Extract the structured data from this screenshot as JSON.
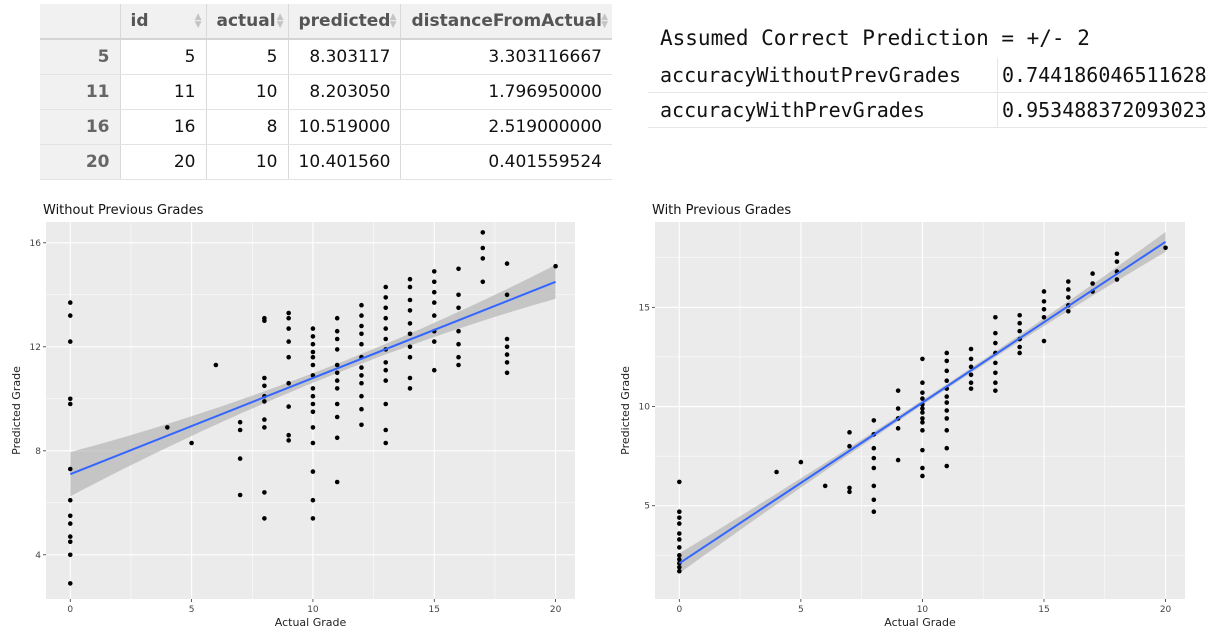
{
  "table": {
    "columns": [
      "id",
      "actual",
      "predicted",
      "distanceFromActual"
    ],
    "rows": [
      {
        "rowname": "5",
        "cells": [
          "5",
          "5",
          "8.303117",
          "3.303116667"
        ]
      },
      {
        "rowname": "11",
        "cells": [
          "11",
          "10",
          "8.203050",
          "1.796950000"
        ]
      },
      {
        "rowname": "16",
        "cells": [
          "16",
          "8",
          "10.519000",
          "2.519000000"
        ]
      },
      {
        "rowname": "20",
        "cells": [
          "20",
          "10",
          "10.401560",
          "0.401559524"
        ]
      }
    ]
  },
  "accuracy": {
    "assumed_label": "Assumed Correct Prediction = +/- 2",
    "rows": [
      {
        "label": "accuracyWithoutPrevGrades",
        "value": "0.744186046511628"
      },
      {
        "label": "accuracyWithPrevGrades",
        "value": "0.953488372093023"
      }
    ]
  },
  "colors": {
    "panel_bg": "#ebebeb",
    "grid": "#ffffff",
    "point": "#000000",
    "fit_line": "#3366ff",
    "ribbon": "#b0b0b0"
  },
  "chart_data": [
    {
      "type": "scatter",
      "title": "Without Previous Grades",
      "xlabel": "Actual Grade",
      "ylabel": "Predicted Grade",
      "xlim": [
        -1,
        20.8
      ],
      "ylim": [
        2.3,
        16.8
      ],
      "xticks": [
        0,
        5,
        10,
        15,
        20
      ],
      "yticks": [
        4,
        8,
        12,
        16
      ],
      "fit": {
        "x0": 0,
        "y0": 7.1,
        "x1": 20,
        "y1": 14.5
      },
      "ribbon": {
        "left_halfwidth": 0.85,
        "center_halfwidth": 0.18,
        "right_halfwidth": 0.65,
        "center_x": 11
      },
      "grid": true,
      "points": [
        [
          0,
          2.9
        ],
        [
          0,
          4.0
        ],
        [
          0,
          4.5
        ],
        [
          0,
          4.7
        ],
        [
          0,
          5.2
        ],
        [
          0,
          5.5
        ],
        [
          0,
          6.1
        ],
        [
          0,
          7.3
        ],
        [
          0,
          9.8
        ],
        [
          0,
          10.0
        ],
        [
          0,
          12.2
        ],
        [
          0,
          13.2
        ],
        [
          0,
          13.7
        ],
        [
          4,
          8.9
        ],
        [
          5,
          8.3
        ],
        [
          6,
          11.3
        ],
        [
          7,
          6.3
        ],
        [
          7,
          7.7
        ],
        [
          7,
          8.8
        ],
        [
          7,
          9.1
        ],
        [
          8,
          5.4
        ],
        [
          8,
          6.4
        ],
        [
          8,
          8.9
        ],
        [
          8,
          9.2
        ],
        [
          8,
          9.9
        ],
        [
          8,
          10.1
        ],
        [
          8,
          10.5
        ],
        [
          8,
          10.8
        ],
        [
          8,
          13.0
        ],
        [
          8,
          13.1
        ],
        [
          9,
          8.4
        ],
        [
          9,
          8.6
        ],
        [
          9,
          9.7
        ],
        [
          9,
          10.6
        ],
        [
          9,
          11.6
        ],
        [
          9,
          12.2
        ],
        [
          9,
          12.7
        ],
        [
          9,
          13.1
        ],
        [
          9,
          13.3
        ],
        [
          10,
          5.4
        ],
        [
          10,
          6.1
        ],
        [
          10,
          7.2
        ],
        [
          10,
          8.3
        ],
        [
          10,
          8.9
        ],
        [
          10,
          9.5
        ],
        [
          10,
          9.8
        ],
        [
          10,
          10.1
        ],
        [
          10,
          10.4
        ],
        [
          10,
          10.9
        ],
        [
          10,
          11.3
        ],
        [
          10,
          11.6
        ],
        [
          10,
          11.8
        ],
        [
          10,
          12.1
        ],
        [
          10,
          12.4
        ],
        [
          10,
          12.7
        ],
        [
          11,
          6.8
        ],
        [
          11,
          8.5
        ],
        [
          11,
          9.3
        ],
        [
          11,
          9.8
        ],
        [
          11,
          10.4
        ],
        [
          11,
          10.7
        ],
        [
          11,
          11.0
        ],
        [
          11,
          11.3
        ],
        [
          11,
          11.9
        ],
        [
          11,
          12.3
        ],
        [
          11,
          12.6
        ],
        [
          11,
          13.1
        ],
        [
          12,
          9.0
        ],
        [
          12,
          9.6
        ],
        [
          12,
          10.1
        ],
        [
          12,
          10.6
        ],
        [
          12,
          10.9
        ],
        [
          12,
          11.2
        ],
        [
          12,
          11.6
        ],
        [
          12,
          12.1
        ],
        [
          12,
          12.5
        ],
        [
          12,
          12.8
        ],
        [
          12,
          13.2
        ],
        [
          12,
          13.6
        ],
        [
          13,
          8.3
        ],
        [
          13,
          8.8
        ],
        [
          13,
          9.8
        ],
        [
          13,
          10.7
        ],
        [
          13,
          11.1
        ],
        [
          13,
          11.4
        ],
        [
          13,
          11.9
        ],
        [
          13,
          12.3
        ],
        [
          13,
          12.7
        ],
        [
          13,
          13.1
        ],
        [
          13,
          13.5
        ],
        [
          13,
          13.9
        ],
        [
          13,
          14.3
        ],
        [
          14,
          10.4
        ],
        [
          14,
          10.8
        ],
        [
          14,
          11.6
        ],
        [
          14,
          12.0
        ],
        [
          14,
          12.5
        ],
        [
          14,
          12.9
        ],
        [
          14,
          13.4
        ],
        [
          14,
          13.8
        ],
        [
          14,
          14.3
        ],
        [
          14,
          14.6
        ],
        [
          15,
          11.1
        ],
        [
          15,
          12.2
        ],
        [
          15,
          12.6
        ],
        [
          15,
          13.2
        ],
        [
          15,
          13.7
        ],
        [
          15,
          14.1
        ],
        [
          15,
          14.5
        ],
        [
          15,
          14.9
        ],
        [
          16,
          11.3
        ],
        [
          16,
          11.6
        ],
        [
          16,
          12.1
        ],
        [
          16,
          12.6
        ],
        [
          16,
          13.5
        ],
        [
          16,
          14.0
        ],
        [
          16,
          15.0
        ],
        [
          17,
          14.5
        ],
        [
          17,
          15.4
        ],
        [
          17,
          15.8
        ],
        [
          17,
          16.4
        ],
        [
          18,
          11.0
        ],
        [
          18,
          11.4
        ],
        [
          18,
          11.7
        ],
        [
          18,
          12.0
        ],
        [
          18,
          12.3
        ],
        [
          18,
          14.0
        ],
        [
          18,
          15.2
        ],
        [
          20,
          15.1
        ]
      ]
    },
    {
      "type": "scatter",
      "title": "With Previous Grades",
      "xlabel": "Actual Grade",
      "ylabel": "Predicted Grade",
      "xlim": [
        -1,
        20.8
      ],
      "ylim": [
        0.3,
        19.3
      ],
      "xticks": [
        0,
        5,
        10,
        15,
        20
      ],
      "yticks": [
        5,
        10,
        15
      ],
      "fit": {
        "x0": 0,
        "y0": 2.1,
        "x1": 20,
        "y1": 18.3
      },
      "ribbon": {
        "left_halfwidth": 0.5,
        "center_halfwidth": 0.12,
        "right_halfwidth": 0.5,
        "center_x": 11
      },
      "grid": true,
      "points": [
        [
          0,
          1.7
        ],
        [
          0,
          1.9
        ],
        [
          0,
          2.1
        ],
        [
          0,
          2.3
        ],
        [
          0,
          2.5
        ],
        [
          0,
          2.9
        ],
        [
          0,
          3.3
        ],
        [
          0,
          3.6
        ],
        [
          0,
          4.1
        ],
        [
          0,
          4.4
        ],
        [
          0,
          4.7
        ],
        [
          0,
          6.2
        ],
        [
          4,
          6.7
        ],
        [
          5,
          7.2
        ],
        [
          6,
          6.0
        ],
        [
          7,
          5.7
        ],
        [
          7,
          5.9
        ],
        [
          7,
          8.0
        ],
        [
          7,
          8.7
        ],
        [
          8,
          4.7
        ],
        [
          8,
          5.3
        ],
        [
          8,
          6.0
        ],
        [
          8,
          6.9
        ],
        [
          8,
          7.4
        ],
        [
          8,
          7.9
        ],
        [
          8,
          8.6
        ],
        [
          8,
          9.3
        ],
        [
          9,
          7.3
        ],
        [
          9,
          8.9
        ],
        [
          9,
          9.4
        ],
        [
          9,
          9.9
        ],
        [
          9,
          10.8
        ],
        [
          10,
          6.5
        ],
        [
          10,
          6.9
        ],
        [
          10,
          7.8
        ],
        [
          10,
          8.8
        ],
        [
          10,
          9.2
        ],
        [
          10,
          9.4
        ],
        [
          10,
          9.7
        ],
        [
          10,
          9.9
        ],
        [
          10,
          10.1
        ],
        [
          10,
          10.4
        ],
        [
          10,
          10.7
        ],
        [
          10,
          11.2
        ],
        [
          10,
          12.4
        ],
        [
          11,
          7.0
        ],
        [
          11,
          7.9
        ],
        [
          11,
          8.8
        ],
        [
          11,
          9.4
        ],
        [
          11,
          9.8
        ],
        [
          11,
          10.2
        ],
        [
          11,
          10.5
        ],
        [
          11,
          10.9
        ],
        [
          11,
          11.3
        ],
        [
          11,
          11.8
        ],
        [
          11,
          12.3
        ],
        [
          11,
          12.7
        ],
        [
          12,
          10.9
        ],
        [
          12,
          11.2
        ],
        [
          12,
          11.6
        ],
        [
          12,
          12.0
        ],
        [
          12,
          12.4
        ],
        [
          12,
          12.9
        ],
        [
          13,
          10.8
        ],
        [
          13,
          11.2
        ],
        [
          13,
          11.7
        ],
        [
          13,
          12.2
        ],
        [
          13,
          12.7
        ],
        [
          13,
          13.2
        ],
        [
          13,
          13.7
        ],
        [
          13,
          14.5
        ],
        [
          14,
          12.7
        ],
        [
          14,
          13.0
        ],
        [
          14,
          13.4
        ],
        [
          14,
          13.8
        ],
        [
          14,
          14.2
        ],
        [
          14,
          14.6
        ],
        [
          15,
          13.3
        ],
        [
          15,
          14.5
        ],
        [
          15,
          14.9
        ],
        [
          15,
          15.3
        ],
        [
          15,
          15.8
        ],
        [
          16,
          14.8
        ],
        [
          16,
          15.1
        ],
        [
          16,
          15.5
        ],
        [
          16,
          15.9
        ],
        [
          16,
          16.3
        ],
        [
          17,
          15.8
        ],
        [
          17,
          16.2
        ],
        [
          17,
          16.7
        ],
        [
          18,
          16.4
        ],
        [
          18,
          16.8
        ],
        [
          18,
          17.3
        ],
        [
          18,
          17.7
        ],
        [
          20,
          18.0
        ]
      ]
    }
  ]
}
